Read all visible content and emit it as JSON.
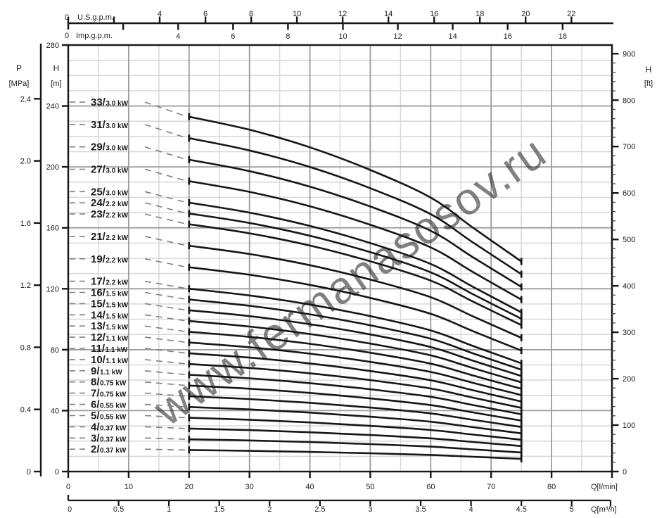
{
  "watermark": {
    "text": "www.fermanasosov.ru",
    "color": "#7fb5b5",
    "opacity": 0.55,
    "rotation_deg": -35
  },
  "colors": {
    "curve": "#161616",
    "axis": "#161616",
    "grid_major": "#9b9b9b",
    "grid_minor": "#d7d7d7",
    "dash": "#808080",
    "text": "#1c1c1c",
    "background": "#ffffff"
  },
  "axes": {
    "top_us": {
      "title": "U.S.g.p.m.",
      "zero": "0",
      "tick_values": [
        2,
        4,
        6,
        8,
        10,
        12,
        14,
        16,
        18,
        20,
        22
      ],
      "labeled_values": [
        4,
        6,
        8,
        10,
        12,
        14,
        16,
        18,
        20,
        22
      ]
    },
    "top_imp": {
      "title": "Imp.g.p.m.",
      "zero": "0",
      "tick_values": [
        2,
        4,
        6,
        8,
        10,
        12,
        14,
        16,
        18
      ],
      "labeled_values": [
        4,
        6,
        8,
        10,
        12,
        14,
        16,
        18
      ]
    },
    "left_pressure": {
      "title": "P",
      "unit": "[MPa]",
      "tick_labels": [
        "0",
        "0.4",
        "0.8",
        "1.2",
        "1.6",
        "2.0",
        "2.4"
      ],
      "tick_values": [
        0,
        0.4,
        0.8,
        1.2,
        1.6,
        2.0,
        2.4
      ]
    },
    "left_head": {
      "title": "H",
      "unit": "[m]",
      "tick_labels": [
        "0",
        "40",
        "80",
        "120",
        "160",
        "200",
        "240",
        "280"
      ],
      "tick_values": [
        0,
        40,
        80,
        120,
        160,
        200,
        240,
        280
      ]
    },
    "right_head": {
      "title": "H",
      "unit": "[ft]",
      "tick_labels": [
        "0",
        "100",
        "200",
        "300",
        "400",
        "500",
        "600",
        "700",
        "800",
        "900"
      ],
      "tick_values": [
        0,
        100,
        200,
        300,
        400,
        500,
        600,
        700,
        800,
        900
      ],
      "minor_step": 20
    },
    "bottom_flow_lmin": {
      "title": "Q[l/min]",
      "tick_labels": [
        "0",
        "10",
        "20",
        "30",
        "40",
        "50",
        "60",
        "70",
        "80"
      ],
      "tick_values": [
        0,
        10,
        20,
        30,
        40,
        50,
        60,
        70,
        80
      ]
    },
    "bottom_flow_m3h": {
      "title": "Q[m³/h]",
      "tick_labels": [
        "0",
        "0.5",
        "1",
        "1.5",
        "2",
        "2.5",
        "3",
        "3.5",
        "4",
        "4.5",
        "5"
      ],
      "tick_values": [
        0,
        0.5,
        1,
        1.5,
        2,
        2.5,
        3,
        3.5,
        4,
        4.5,
        5
      ]
    }
  },
  "chart_data": {
    "type": "line",
    "x_unit": "l/min",
    "x": [
      20,
      30,
      40,
      50,
      60,
      67,
      75
    ],
    "per_stage_head_m": [
      7.06,
      6.8,
      6.45,
      6.0,
      5.45,
      4.85,
      4.18
    ],
    "shutoff_head_per_stage_m": 7.35,
    "head_rule": "curve head H(Q) = stages × per_stage_head_m(Q); label line sits at stages × shutoff head",
    "q_start_lmin": 20,
    "q_end_lmin": 75,
    "axis_ranges": {
      "H_m": [
        0,
        280
      ],
      "Q_lmin": [
        0,
        90
      ],
      "H_ft": [
        0,
        900
      ],
      "P_MPa": [
        0,
        2.4
      ],
      "Q_m3h": [
        0,
        5
      ]
    },
    "grid": {
      "h_minor_step_m": 10,
      "h_major_step_m": 40,
      "v_minor_step_lmin": 5,
      "v_major_step_lmin": 10
    },
    "series": [
      {
        "label": "33/3.0 kW",
        "stages": 33,
        "power_kw": "3.0"
      },
      {
        "label": "31/3.0 kW",
        "stages": 31,
        "power_kw": "3.0"
      },
      {
        "label": "29/3.0 kW",
        "stages": 29,
        "power_kw": "3.0"
      },
      {
        "label": "27/3.0 kW",
        "stages": 27,
        "power_kw": "3.0"
      },
      {
        "label": "25/3.0 kW",
        "stages": 25,
        "power_kw": "3.0"
      },
      {
        "label": "24/2.2 kW",
        "stages": 24,
        "power_kw": "2.2"
      },
      {
        "label": "23/2.2 kW",
        "stages": 23,
        "power_kw": "2.2"
      },
      {
        "label": "21/2.2 kW",
        "stages": 21,
        "power_kw": "2.2"
      },
      {
        "label": "19/2.2 kW",
        "stages": 19,
        "power_kw": "2.2"
      },
      {
        "label": "17/2.2 kW",
        "stages": 17,
        "power_kw": "2.2"
      },
      {
        "label": "16/1.5 kW",
        "stages": 16,
        "power_kw": "1.5"
      },
      {
        "label": "15/1.5 kW",
        "stages": 15,
        "power_kw": "1.5"
      },
      {
        "label": "14/1.5 kW",
        "stages": 14,
        "power_kw": "1.5"
      },
      {
        "label": "13/1.5 kW",
        "stages": 13,
        "power_kw": "1.5"
      },
      {
        "label": "12/1.1 kW",
        "stages": 12,
        "power_kw": "1.1"
      },
      {
        "label": "11/1.1 kW",
        "stages": 11,
        "power_kw": "1.1"
      },
      {
        "label": "10/1.1 kW",
        "stages": 10,
        "power_kw": "1.1"
      },
      {
        "label": "9/1.1 kW",
        "stages": 9,
        "power_kw": "1.1"
      },
      {
        "label": "8/0.75 kW",
        "stages": 8,
        "power_kw": "0.75"
      },
      {
        "label": "7/0.75 kW",
        "stages": 7,
        "power_kw": "0.75"
      },
      {
        "label": "6/0.55 kW",
        "stages": 6,
        "power_kw": "0.55"
      },
      {
        "label": "5/0.55 kW",
        "stages": 5,
        "power_kw": "0.55"
      },
      {
        "label": "4/0.37 kW",
        "stages": 4,
        "power_kw": "0.37"
      },
      {
        "label": "3/0.37 kW",
        "stages": 3,
        "power_kw": "0.37"
      },
      {
        "label": "2/0.37 kW",
        "stages": 2,
        "power_kw": "0.37"
      }
    ]
  }
}
